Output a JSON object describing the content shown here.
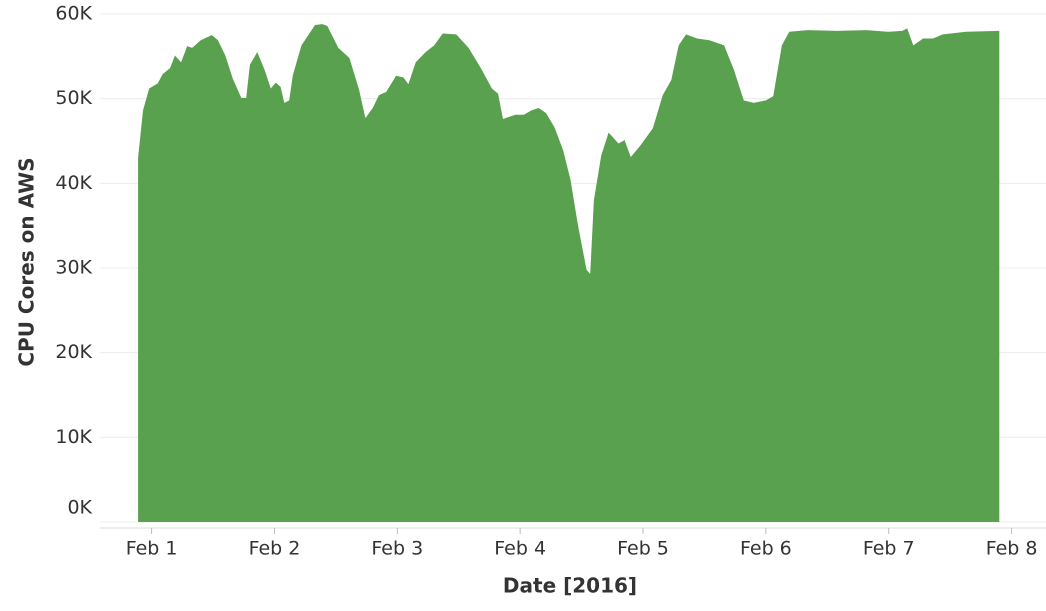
{
  "chart_data": {
    "type": "area",
    "x_label": "Date [2016]",
    "y_label": "CPU Cores on AWS",
    "color": "#59a14f",
    "grid": true,
    "x": [
      0.89,
      0.93,
      0.98,
      1.05,
      1.09,
      1.15,
      1.19,
      1.24,
      1.29,
      1.33,
      1.4,
      1.49,
      1.54,
      1.6,
      1.66,
      1.73,
      1.77,
      1.8,
      1.86,
      1.92,
      1.97,
      2.01,
      2.05,
      2.08,
      2.12,
      2.15,
      2.22,
      2.33,
      2.39,
      2.43,
      2.52,
      2.61,
      2.69,
      2.74,
      2.8,
      2.85,
      2.91,
      2.99,
      3.05,
      3.09,
      3.15,
      3.23,
      3.3,
      3.37,
      3.48,
      3.58,
      3.68,
      3.77,
      3.82,
      3.86,
      3.96,
      4.03,
      4.09,
      4.15,
      4.21,
      4.28,
      4.35,
      4.41,
      4.47,
      4.54,
      4.57,
      4.6,
      4.66,
      4.72,
      4.8,
      4.85,
      4.9,
      4.98,
      5.08,
      5.16,
      5.23,
      5.29,
      5.35,
      5.44,
      5.54,
      5.66,
      5.74,
      5.82,
      5.9,
      6.0,
      6.06,
      6.13,
      6.19,
      6.34,
      6.58,
      6.82,
      6.99,
      7.11,
      7.15,
      7.2,
      7.28,
      7.36,
      7.44,
      7.63,
      7.9
    ],
    "values": [
      43000,
      48600,
      51200,
      51800,
      52900,
      53600,
      55100,
      54300,
      56200,
      56000,
      56900,
      57500,
      56900,
      55100,
      52400,
      50100,
      50100,
      54000,
      55500,
      53400,
      51200,
      51900,
      51400,
      49500,
      49800,
      52800,
      56300,
      58700,
      58800,
      58600,
      56000,
      54800,
      51000,
      47700,
      48900,
      50400,
      50800,
      52700,
      52500,
      51700,
      54300,
      55500,
      56300,
      57700,
      57600,
      56000,
      53600,
      51200,
      50600,
      47600,
      48100,
      48100,
      48600,
      48900,
      48300,
      46600,
      43900,
      40400,
      35100,
      29800,
      29300,
      38000,
      43300,
      46000,
      44700,
      45100,
      43100,
      44500,
      46500,
      50400,
      52200,
      56300,
      57600,
      57100,
      56900,
      56300,
      53400,
      49800,
      49500,
      49800,
      50300,
      56300,
      57900,
      58100,
      58000,
      58100,
      57900,
      58000,
      58300,
      56300,
      57100,
      57100,
      57600,
      57900,
      58000
    ],
    "xlim": [
      0.58,
      8.28
    ],
    "xticks": [
      {
        "value": 1,
        "label": "Feb 1"
      },
      {
        "value": 2,
        "label": "Feb 2"
      },
      {
        "value": 3,
        "label": "Feb 3"
      },
      {
        "value": 4,
        "label": "Feb 4"
      },
      {
        "value": 5,
        "label": "Feb 5"
      },
      {
        "value": 6,
        "label": "Feb 6"
      },
      {
        "value": 7,
        "label": "Feb 7"
      },
      {
        "value": 8,
        "label": "Feb 8"
      }
    ],
    "ylim": [
      0,
      60000
    ],
    "yticks": [
      {
        "value": 0,
        "label": "0K"
      },
      {
        "value": 10000,
        "label": "10K"
      },
      {
        "value": 20000,
        "label": "20K"
      },
      {
        "value": 30000,
        "label": "30K"
      },
      {
        "value": 40000,
        "label": "40K"
      },
      {
        "value": 50000,
        "label": "50K"
      },
      {
        "value": 60000,
        "label": "60K"
      }
    ]
  }
}
